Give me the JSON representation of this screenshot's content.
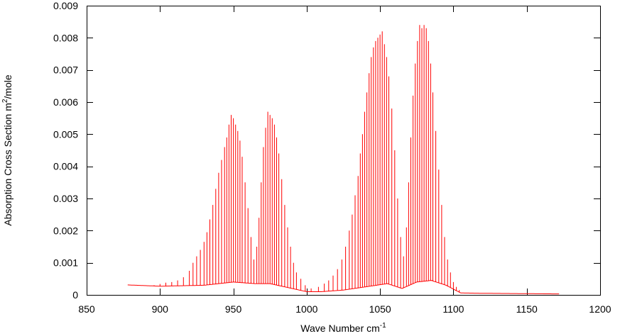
{
  "chart_data": {
    "type": "line",
    "xlabel": "Wave Number cm",
    "xlabel_sup": "-1",
    "ylabel_prefix": "Absorption Cross Section m",
    "ylabel_sup": "2",
    "ylabel_suffix": "/mole",
    "xlim": [
      850,
      1200
    ],
    "ylim": [
      0,
      0.009
    ],
    "x_ticks": [
      850,
      900,
      950,
      1000,
      1050,
      1100,
      1150,
      1200
    ],
    "y_ticks": [
      0,
      0.001,
      0.002,
      0.003,
      0.004,
      0.005,
      0.006,
      0.007,
      0.008,
      0.009
    ],
    "x_tick_labels": [
      "850",
      "900",
      "950",
      "1000",
      "1050",
      "1100",
      "1150",
      "1200"
    ],
    "y_tick_labels": [
      "0",
      "0.001",
      "0.002",
      "0.003",
      "0.004",
      "0.005",
      "0.006",
      "0.007",
      "0.008",
      "0.009"
    ],
    "grid": false,
    "legend": "none",
    "series": [
      {
        "color": "#ff0000",
        "x_range": [
          878,
          1172
        ],
        "baseline": [
          [
            878,
            0.00031
          ],
          [
            900,
            0.00027
          ],
          [
            930,
            0.0003
          ],
          [
            950,
            0.0004
          ],
          [
            965,
            0.00035
          ],
          [
            975,
            0.00035
          ],
          [
            990,
            0.0002
          ],
          [
            1000,
            0.0001
          ],
          [
            1010,
            0.0001
          ],
          [
            1025,
            0.00015
          ],
          [
            1040,
            0.00025
          ],
          [
            1055,
            0.00035
          ],
          [
            1065,
            0.0002
          ],
          [
            1075,
            0.0004
          ],
          [
            1085,
            0.00045
          ],
          [
            1095,
            0.0003
          ],
          [
            1105,
            6e-05
          ],
          [
            1120,
            5e-05
          ],
          [
            1172,
            3e-05
          ]
        ],
        "peaks": [
          [
            896,
            0.0003
          ],
          [
            900,
            0.00034
          ],
          [
            904,
            0.00038
          ],
          [
            908,
            0.0004
          ],
          [
            912,
            0.00045
          ],
          [
            916,
            0.00055
          ],
          [
            920,
            0.00075
          ],
          [
            922.5,
            0.001
          ],
          [
            925,
            0.0012
          ],
          [
            927.5,
            0.0014
          ],
          [
            930,
            0.00165
          ],
          [
            932,
            0.00195
          ],
          [
            934,
            0.00235
          ],
          [
            936,
            0.0028
          ],
          [
            938,
            0.0033
          ],
          [
            940,
            0.0038
          ],
          [
            942,
            0.0042
          ],
          [
            944,
            0.0046
          ],
          [
            945.5,
            0.0049
          ],
          [
            947,
            0.0053
          ],
          [
            948.5,
            0.0056
          ],
          [
            950,
            0.0055
          ],
          [
            951.5,
            0.0053
          ],
          [
            953,
            0.0051
          ],
          [
            954.5,
            0.0048
          ],
          [
            956,
            0.0043
          ],
          [
            958,
            0.0035
          ],
          [
            960,
            0.0027
          ],
          [
            962,
            0.0018
          ],
          [
            964,
            0.0011
          ],
          [
            966,
            0.0015
          ],
          [
            967.5,
            0.0024
          ],
          [
            969,
            0.0035
          ],
          [
            970.5,
            0.0046
          ],
          [
            972,
            0.0052
          ],
          [
            973.5,
            0.0057
          ],
          [
            975,
            0.0056
          ],
          [
            976.5,
            0.0055
          ],
          [
            978,
            0.0053
          ],
          [
            979.5,
            0.0049
          ],
          [
            981,
            0.0044
          ],
          [
            983,
            0.0036
          ],
          [
            985,
            0.0028
          ],
          [
            987,
            0.0021
          ],
          [
            989,
            0.0015
          ],
          [
            991,
            0.001
          ],
          [
            993,
            0.0007
          ],
          [
            996,
            0.0005
          ],
          [
            999,
            0.0003
          ],
          [
            1003,
            0.0002
          ],
          [
            1008,
            0.00025
          ],
          [
            1012,
            0.00035
          ],
          [
            1015,
            0.00045
          ],
          [
            1018,
            0.0006
          ],
          [
            1021,
            0.0008
          ],
          [
            1024,
            0.0011
          ],
          [
            1026.5,
            0.0015
          ],
          [
            1029,
            0.002
          ],
          [
            1031,
            0.0025
          ],
          [
            1033,
            0.0031
          ],
          [
            1035,
            0.0037
          ],
          [
            1036.5,
            0.0044
          ],
          [
            1038,
            0.005
          ],
          [
            1039.5,
            0.0057
          ],
          [
            1041,
            0.0063
          ],
          [
            1042.5,
            0.0069
          ],
          [
            1044,
            0.0074
          ],
          [
            1045.5,
            0.0077
          ],
          [
            1047,
            0.0079
          ],
          [
            1048.5,
            0.008
          ],
          [
            1050,
            0.0081
          ],
          [
            1051.5,
            0.0082
          ],
          [
            1053,
            0.0078
          ],
          [
            1054.5,
            0.0074
          ],
          [
            1056,
            0.0068
          ],
          [
            1058,
            0.0058
          ],
          [
            1060,
            0.0045
          ],
          [
            1062,
            0.003
          ],
          [
            1064,
            0.0018
          ],
          [
            1066,
            0.0012
          ],
          [
            1068,
            0.0021
          ],
          [
            1069.5,
            0.0035
          ],
          [
            1071,
            0.0049
          ],
          [
            1072.5,
            0.0062
          ],
          [
            1074,
            0.0072
          ],
          [
            1075.5,
            0.0079
          ],
          [
            1077,
            0.0084
          ],
          [
            1078.5,
            0.0083
          ],
          [
            1080,
            0.0084
          ],
          [
            1081.5,
            0.0083
          ],
          [
            1083,
            0.0079
          ],
          [
            1084.5,
            0.0072
          ],
          [
            1086,
            0.0063
          ],
          [
            1088,
            0.0051
          ],
          [
            1090,
            0.0039
          ],
          [
            1092,
            0.0028
          ],
          [
            1094,
            0.0018
          ],
          [
            1096,
            0.0011
          ],
          [
            1098,
            0.0007
          ],
          [
            1100,
            0.0004
          ],
          [
            1102,
            0.00025
          ],
          [
            1104,
            0.00015
          ]
        ]
      }
    ]
  }
}
